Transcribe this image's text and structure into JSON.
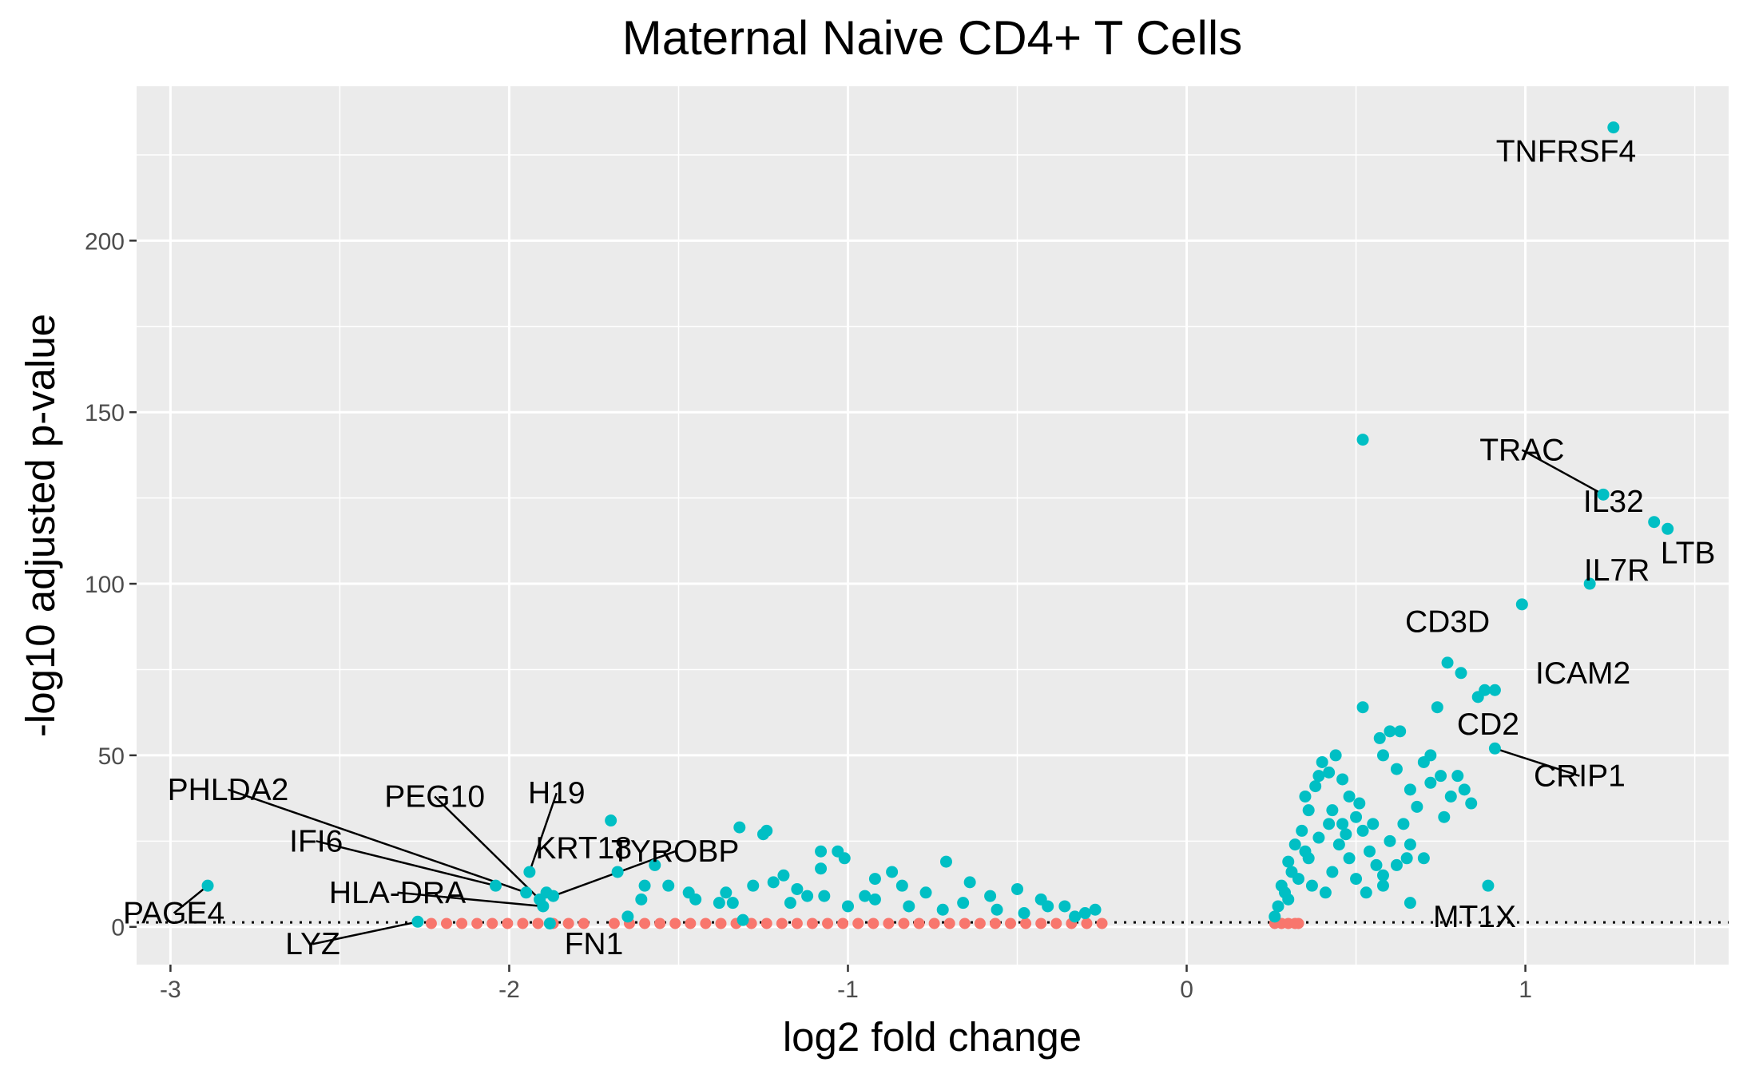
{
  "chart_data": {
    "type": "scatter",
    "title": "Maternal Naive CD4+ T Cells",
    "xlabel": "log2 fold change",
    "ylabel": "-log10 adjusted p-value",
    "xlim": [
      -3.1,
      1.6
    ],
    "ylim": [
      -11,
      245
    ],
    "x_ticks": [
      -3,
      -2,
      -1,
      0,
      1
    ],
    "x_tick_labels": [
      "-3",
      "-2",
      "-1",
      "0",
      "1"
    ],
    "y_ticks": [
      0,
      50,
      100,
      150,
      200
    ],
    "y_tick_labels": [
      "0",
      "50",
      "100",
      "150",
      "200"
    ],
    "grid": true,
    "legend": "none",
    "threshold_line": {
      "y": 1.3,
      "style": "dotted"
    },
    "colors": {
      "significant": "#00BFC4",
      "not_significant": "#F8766D",
      "panel": "#EBEBEB",
      "grid": "#FFFFFF"
    },
    "labeled_points": [
      {
        "gene": "TNFRSF4",
        "x": 1.26,
        "y": 233,
        "lx": 1.12,
        "ly": 226
      },
      {
        "gene": "TRAC",
        "x": 1.23,
        "y": 126,
        "lx": 0.99,
        "ly": 139,
        "seg": true
      },
      {
        "gene": "IL32",
        "x": 1.38,
        "y": 118,
        "lx": 1.26,
        "ly": 124
      },
      {
        "gene": "LTB",
        "x": 1.42,
        "y": 116,
        "lx": 1.48,
        "ly": 109
      },
      {
        "gene": "IL7R",
        "x": 1.19,
        "y": 100,
        "lx": 1.27,
        "ly": 104
      },
      {
        "gene": "CD3D",
        "x": 0.99,
        "y": 94,
        "lx": 0.77,
        "ly": 89
      },
      {
        "gene": "ICAM2",
        "x": 0.88,
        "y": 69,
        "lx": 1.17,
        "ly": 74
      },
      {
        "gene": "CD2",
        "x": 0.86,
        "y": 67,
        "lx": 0.89,
        "ly": 59
      },
      {
        "gene": "CRIP1",
        "x": 0.91,
        "y": 52,
        "lx": 1.16,
        "ly": 44,
        "seg": true
      },
      {
        "gene": "MT1X",
        "x": 0.67,
        "y": 7,
        "lx": 0.85,
        "ly": 3
      },
      {
        "gene": "PHLDA2",
        "x": -1.95,
        "y": 10,
        "lx": -2.83,
        "ly": 40,
        "seg": true
      },
      {
        "gene": "PEG10",
        "x": -1.91,
        "y": 8,
        "lx": -2.22,
        "ly": 38,
        "seg": true
      },
      {
        "gene": "H19",
        "x": -1.94,
        "y": 16,
        "lx": -1.86,
        "ly": 39,
        "seg": true
      },
      {
        "gene": "IFI6",
        "x": -2.04,
        "y": 12,
        "lx": -2.57,
        "ly": 25,
        "seg": true
      },
      {
        "gene": "KRT18",
        "x": -1.89,
        "y": 10,
        "lx": -1.78,
        "ly": 23
      },
      {
        "gene": "TYROBP",
        "x": -1.87,
        "y": 9,
        "lx": -1.51,
        "ly": 22,
        "seg": true
      },
      {
        "gene": "HLA-DRA",
        "x": -1.9,
        "y": 6,
        "lx": -2.33,
        "ly": 10,
        "seg": true
      },
      {
        "gene": "PAGE4",
        "x": -2.89,
        "y": 12,
        "lx": -2.99,
        "ly": 4,
        "seg": true
      },
      {
        "gene": "LYZ",
        "x": -2.27,
        "y": 1.5,
        "lx": -2.58,
        "ly": -5,
        "seg": true
      },
      {
        "gene": "FN1",
        "x": -1.88,
        "y": 1,
        "lx": -1.75,
        "ly": -5
      }
    ],
    "points_sig": [
      [
        1.26,
        233
      ],
      [
        0.52,
        142
      ],
      [
        1.23,
        126
      ],
      [
        1.38,
        118
      ],
      [
        1.42,
        116
      ],
      [
        1.19,
        100
      ],
      [
        0.99,
        94
      ],
      [
        0.77,
        77
      ],
      [
        0.81,
        74
      ],
      [
        0.88,
        69
      ],
      [
        0.91,
        69
      ],
      [
        0.86,
        67
      ],
      [
        0.52,
        64
      ],
      [
        0.74,
        64
      ],
      [
        0.91,
        52
      ],
      [
        -2.89,
        12
      ],
      [
        -1.94,
        16
      ],
      [
        -2.04,
        12
      ],
      [
        -1.95,
        10
      ],
      [
        -1.91,
        8
      ],
      [
        -1.89,
        10
      ],
      [
        -1.87,
        9
      ],
      [
        -1.9,
        6
      ],
      [
        -2.27,
        1.5
      ],
      [
        -1.88,
        1
      ],
      [
        -1.7,
        31
      ],
      [
        -1.68,
        16
      ],
      [
        -1.57,
        18
      ],
      [
        -1.32,
        29
      ],
      [
        -1.25,
        27
      ],
      [
        -1.24,
        28
      ],
      [
        -1.19,
        15
      ],
      [
        -1.08,
        22
      ],
      [
        -1.08,
        17
      ],
      [
        -1.03,
        22
      ],
      [
        -1.01,
        20
      ],
      [
        -0.71,
        19
      ],
      [
        -0.87,
        16
      ],
      [
        -0.92,
        14
      ],
      [
        -1.53,
        12
      ],
      [
        -1.47,
        10
      ],
      [
        -1.61,
        8
      ],
      [
        -1.36,
        10
      ],
      [
        -1.28,
        12
      ],
      [
        -1.34,
        7
      ],
      [
        -1.12,
        9
      ],
      [
        -1.17,
        7
      ],
      [
        -1.22,
        13
      ],
      [
        -1.45,
        8
      ],
      [
        -1.6,
        12
      ],
      [
        -1.65,
        3
      ],
      [
        -1.38,
        7
      ],
      [
        -1.31,
        2
      ],
      [
        -1.15,
        11
      ],
      [
        -1.07,
        9
      ],
      [
        -0.95,
        9
      ],
      [
        -0.84,
        12
      ],
      [
        -0.77,
        10
      ],
      [
        -0.64,
        13
      ],
      [
        -0.58,
        9
      ],
      [
        -0.5,
        11
      ],
      [
        -0.43,
        8
      ],
      [
        -0.36,
        6
      ],
      [
        -0.3,
        4
      ],
      [
        -0.27,
        5
      ],
      [
        -0.66,
        7
      ],
      [
        -0.72,
        5
      ],
      [
        -0.82,
        6
      ],
      [
        -0.92,
        8
      ],
      [
        -1.0,
        6
      ],
      [
        -0.56,
        5
      ],
      [
        -0.48,
        4
      ],
      [
        -0.41,
        6
      ],
      [
        -0.33,
        3
      ],
      [
        0.28,
        12
      ],
      [
        0.3,
        19
      ],
      [
        0.32,
        24
      ],
      [
        0.34,
        28
      ],
      [
        0.36,
        34
      ],
      [
        0.38,
        41
      ],
      [
        0.4,
        48
      ],
      [
        0.42,
        45
      ],
      [
        0.44,
        50
      ],
      [
        0.46,
        43
      ],
      [
        0.48,
        38
      ],
      [
        0.5,
        32
      ],
      [
        0.52,
        28
      ],
      [
        0.54,
        22
      ],
      [
        0.56,
        18
      ],
      [
        0.58,
        15
      ],
      [
        0.3,
        8
      ],
      [
        0.33,
        14
      ],
      [
        0.36,
        20
      ],
      [
        0.39,
        26
      ],
      [
        0.42,
        30
      ],
      [
        0.45,
        24
      ],
      [
        0.48,
        20
      ],
      [
        0.5,
        14
      ],
      [
        0.53,
        10
      ],
      [
        0.57,
        55
      ],
      [
        0.6,
        57
      ],
      [
        0.63,
        57
      ],
      [
        0.58,
        50
      ],
      [
        0.62,
        46
      ],
      [
        0.66,
        40
      ],
      [
        0.7,
        48
      ],
      [
        0.72,
        42
      ],
      [
        0.75,
        44
      ],
      [
        0.78,
        38
      ],
      [
        0.8,
        44
      ],
      [
        0.82,
        40
      ],
      [
        0.84,
        36
      ],
      [
        0.72,
        50
      ],
      [
        0.66,
        24
      ],
      [
        0.6,
        25
      ],
      [
        0.7,
        20
      ],
      [
        0.64,
        30
      ],
      [
        0.68,
        35
      ],
      [
        0.76,
        32
      ],
      [
        0.62,
        18
      ],
      [
        0.58,
        12
      ],
      [
        0.65,
        20
      ],
      [
        0.66,
        7
      ],
      [
        0.89,
        12
      ],
      [
        0.26,
        3
      ],
      [
        0.27,
        6
      ],
      [
        0.29,
        10
      ],
      [
        0.31,
        16
      ],
      [
        0.35,
        22
      ],
      [
        0.37,
        12
      ],
      [
        0.41,
        10
      ],
      [
        0.43,
        16
      ],
      [
        0.47,
        27
      ],
      [
        0.51,
        36
      ],
      [
        0.55,
        30
      ],
      [
        0.35,
        38
      ],
      [
        0.39,
        44
      ],
      [
        0.43,
        34
      ],
      [
        0.46,
        30
      ]
    ]
  }
}
